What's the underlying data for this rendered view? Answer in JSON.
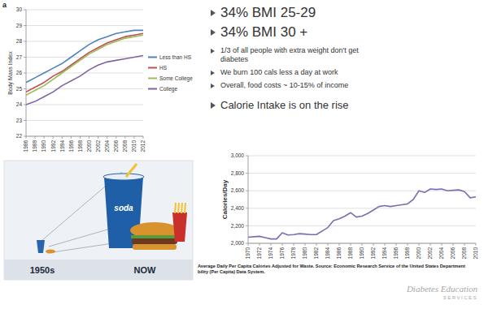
{
  "chart_data": [
    {
      "type": "line",
      "panel_label": "a",
      "y_label": "Body Mass Index",
      "x": [
        1986,
        1988,
        1990,
        1992,
        1994,
        1996,
        1998,
        2000,
        2002,
        2004,
        2006,
        2008,
        2010,
        2012
      ],
      "xlim": [
        1986,
        2012
      ],
      "xticks": [
        1986,
        1988,
        1990,
        1992,
        1994,
        1996,
        1998,
        2000,
        2002,
        2004,
        2006,
        2008,
        2010,
        2012
      ],
      "ylim": [
        22,
        30
      ],
      "yticks": [
        22,
        23,
        24,
        25,
        26,
        27,
        28,
        29,
        30
      ],
      "grid": true,
      "legend": "right",
      "series": [
        {
          "name": "Less than HS",
          "color": "#4f81bd",
          "values": [
            25.4,
            25.7,
            26.0,
            26.3,
            26.6,
            27.0,
            27.4,
            27.8,
            28.1,
            28.3,
            28.5,
            28.6,
            28.7,
            28.7
          ]
        },
        {
          "name": "HS",
          "color": "#c0504d",
          "values": [
            24.8,
            25.1,
            25.4,
            25.8,
            26.1,
            26.5,
            26.9,
            27.3,
            27.6,
            27.9,
            28.1,
            28.3,
            28.4,
            28.5
          ]
        },
        {
          "name": "Some College",
          "color": "#9bbb59",
          "values": [
            24.6,
            24.9,
            25.2,
            25.6,
            26.0,
            26.4,
            26.8,
            27.2,
            27.5,
            27.8,
            28.0,
            28.2,
            28.3,
            28.4
          ]
        },
        {
          "name": "College",
          "color": "#8064a2",
          "values": [
            24.0,
            24.2,
            24.5,
            24.8,
            25.2,
            25.5,
            25.8,
            26.2,
            26.5,
            26.7,
            26.8,
            26.9,
            27.0,
            27.1
          ]
        }
      ]
    },
    {
      "type": "line",
      "y_label": "Calories/Day",
      "caption": [
        "Average Daily Per Capita Calories Adjusted for Waste. Source: Economic Research Service of the United States Department",
        "bility (Per Capita) Data System."
      ],
      "x": [
        1970,
        1971,
        1972,
        1973,
        1974,
        1975,
        1976,
        1977,
        1978,
        1979,
        1980,
        1981,
        1982,
        1983,
        1984,
        1985,
        1986,
        1987,
        1988,
        1989,
        1990,
        1991,
        1992,
        1993,
        1994,
        1995,
        1996,
        1997,
        1998,
        1999,
        2000,
        2001,
        2002,
        2003,
        2004,
        2005,
        2006,
        2007,
        2008,
        2009,
        2010
      ],
      "values": [
        2070,
        2075,
        2080,
        2065,
        2050,
        2050,
        2120,
        2095,
        2100,
        2110,
        2105,
        2100,
        2100,
        2140,
        2180,
        2260,
        2280,
        2310,
        2350,
        2300,
        2310,
        2340,
        2380,
        2420,
        2430,
        2420,
        2430,
        2440,
        2450,
        2500,
        2600,
        2580,
        2620,
        2615,
        2620,
        2600,
        2605,
        2610,
        2590,
        2520,
        2530
      ],
      "color": "#7a6fb0",
      "xlim": [
        1970,
        2010
      ],
      "xticks": [
        1970,
        1972,
        1974,
        1976,
        1978,
        1980,
        1982,
        1984,
        1986,
        1988,
        1990,
        1992,
        1994,
        1996,
        1998,
        2000,
        2002,
        2004,
        2006,
        2008,
        2010
      ],
      "ylim": [
        2000,
        3000
      ],
      "yticks": [
        {
          "value": 2000,
          "label": "2,000"
        },
        {
          "value": 2200,
          "label": "2,200"
        },
        {
          "value": 2400,
          "label": "2,400"
        },
        {
          "value": 2600,
          "label": "2,600"
        },
        {
          "value": 2800,
          "label": "2,800"
        },
        {
          "value": 3000,
          "label": "3,000"
        }
      ],
      "grid": true
    }
  ],
  "headline_bullets": [
    "34% BMI 25-29",
    "34% BMI 30 +"
  ],
  "detail_bullets": [
    "1/3 of all people with extra weight don't get diabetes",
    "We burn 100 cals less a day at work",
    "Overall, food costs ~ 10-15% of income"
  ],
  "closing_bullet": "Calorie Intake is on the rise",
  "illustration": {
    "labels": [
      "1950s",
      "NOW"
    ],
    "cup_label": "soda"
  },
  "logo": [
    "Diabetes Education",
    "SERVICES"
  ]
}
